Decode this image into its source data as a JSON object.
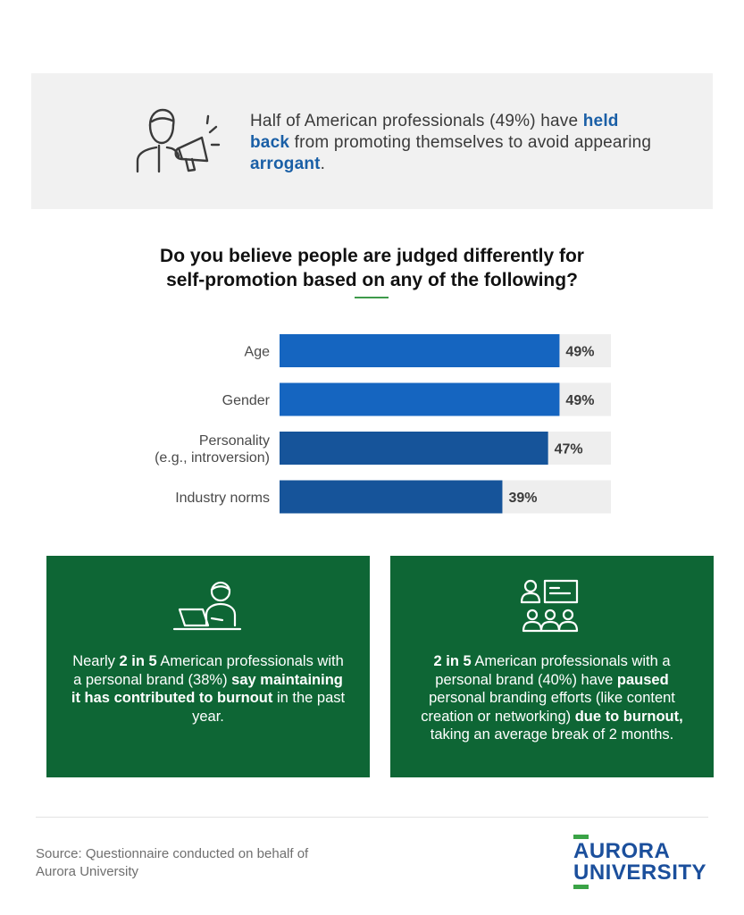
{
  "colors": {
    "bar_light": "#1565c0",
    "bar_dark": "#16549a",
    "track": "#eeeeee",
    "card_green": "#0e6635",
    "highlight_blue": "#1a5fa6",
    "accent_green": "#3e9a4a",
    "logo_blue": "#1b4f9c"
  },
  "top_stat": {
    "icon": "person-megaphone-icon",
    "text_1": "Half of American professionals (49%) have ",
    "bold_1": "held back",
    "text_2": " from promoting themselves to avoid appearing ",
    "bold_2": "arrogant",
    "text_3": "."
  },
  "question": {
    "line_1": "Do you believe people are judged differently for",
    "line_2": "self-promotion based on any of the following?"
  },
  "chart_data": {
    "type": "bar",
    "orientation": "horizontal",
    "categories": [
      [
        "Age"
      ],
      [
        "Gender"
      ],
      [
        "Personality",
        "(e.g., introversion)"
      ],
      [
        "Industry norms"
      ]
    ],
    "values": [
      49,
      49,
      47,
      39
    ],
    "value_labels": [
      "49%",
      "49%",
      "47%",
      "39%"
    ],
    "xlim": [
      0,
      58
    ],
    "grid": false,
    "legend": "none"
  },
  "cards": {
    "left": {
      "icon": "person-laptop-icon",
      "t1": "Nearly ",
      "b1": "2 in 5",
      "t2": " American professionals with a personal brand (38%) ",
      "b2": "say maintaining it has contributed to burnout",
      "t3": " in the past year."
    },
    "right": {
      "icon": "presentation-audience-icon",
      "b1": "2 in 5",
      "t1": " American professionals with a personal brand (40%) have ",
      "b2": "paused",
      "t2": " personal branding efforts (like content creation or networking) ",
      "b3": "due to burnout,",
      "t3": " taking an average break of 2 months."
    }
  },
  "source": "Source: Questionnaire conducted on behalf of Aurora University",
  "logo": {
    "line_1": "AURORA",
    "line_2": "UNIVERSITY"
  }
}
